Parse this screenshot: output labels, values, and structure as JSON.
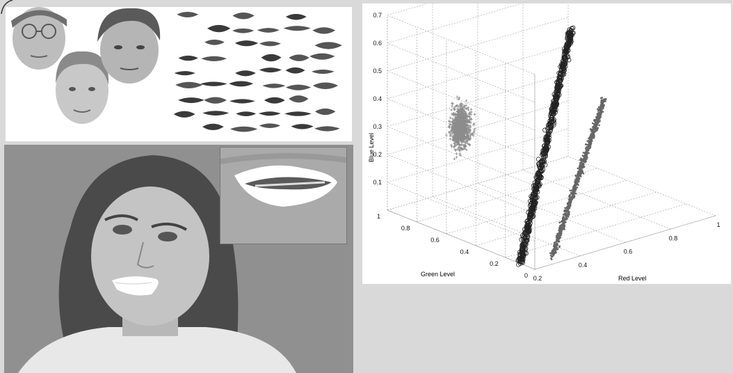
{
  "colors": {
    "background": "#d9d9d9",
    "skin_cluster": "#8c8c8c",
    "lip_cluster_dark": "#222222",
    "lip_cluster_mid": "#666666"
  },
  "icons": {
    "face_samples": "face-photo",
    "lip_samples": "lip-crop",
    "subject_photo": "portrait-photo",
    "lip_zoom": "zoomed-mouth"
  },
  "chart_data": {
    "type": "scatter",
    "projection": "3d",
    "title": "",
    "xlabel": "Red Level",
    "ylabel": "Green Level",
    "zlabel": "Blue Level",
    "xlim": [
      0.2,
      1
    ],
    "ylim": [
      0,
      1
    ],
    "zlim": [
      0,
      0.7
    ],
    "x_ticks": [
      "0.2",
      "0.4",
      "0.6",
      "0.8",
      "1"
    ],
    "y_ticks": [
      "0",
      "0.2",
      "0.4",
      "0.6",
      "0.8",
      "1"
    ],
    "z_ticks": [
      "0.1",
      "0.2",
      "0.3",
      "0.4",
      "0.5",
      "0.6",
      "0.7"
    ],
    "grid": true,
    "series": [
      {
        "marker": "plus",
        "center": {
          "r": 0.38,
          "g": 0.78,
          "b": 0.3
        },
        "spread": {
          "r": 0.03,
          "g": 0.03,
          "b": 0.06
        },
        "count": 900
      },
      {
        "marker": "circle",
        "line_from": {
          "r": 0.2,
          "g": 0.1,
          "b": 0.0
        },
        "line_to": {
          "r": 0.72,
          "g": 0.55,
          "b": 0.62
        },
        "count": 700
      },
      {
        "marker": "dot",
        "line_from": {
          "r": 0.33,
          "g": 0.08,
          "b": 0.0
        },
        "line_to": {
          "r": 0.82,
          "g": 0.48,
          "b": 0.36
        },
        "count": 900
      }
    ]
  }
}
